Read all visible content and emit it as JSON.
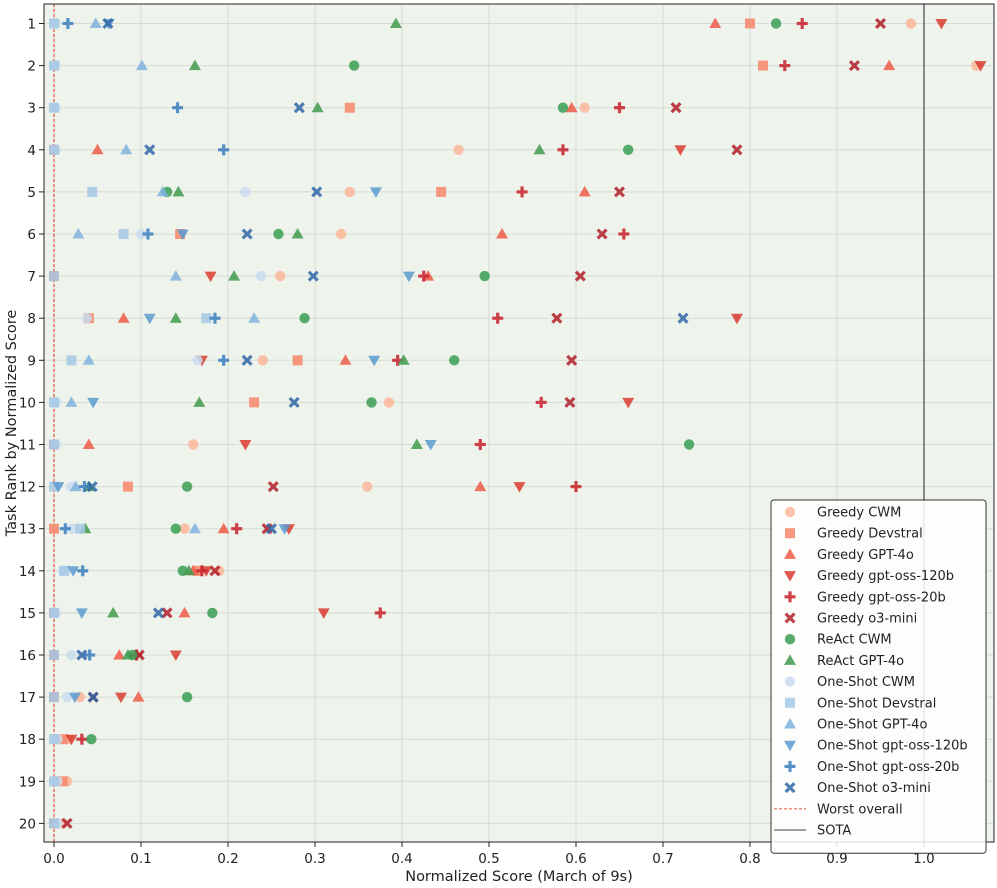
{
  "chart_data": {
    "type": "scatter",
    "xlabel": "Normalized Score (March of 9s)",
    "ylabel": "Task Rank by Normalized Score",
    "xlim": [
      -0.01,
      1.08
    ],
    "x_ticks": [
      0.0,
      0.1,
      0.2,
      0.3,
      0.4,
      0.5,
      0.6,
      0.7,
      0.8,
      0.9,
      1.0
    ],
    "x_tick_labels": [
      "0.0",
      "0.1",
      "0.2",
      "0.3",
      "0.4",
      "0.5",
      "0.6",
      "0.7",
      "0.8",
      "0.9",
      "1.0"
    ],
    "categories": [
      "1",
      "2",
      "3",
      "4",
      "5",
      "6",
      "7",
      "8",
      "9",
      "10",
      "11",
      "12",
      "13",
      "14",
      "15",
      "16",
      "17",
      "18",
      "19",
      "20"
    ],
    "grid": true,
    "legend_position": "lower-right",
    "reference_lines": [
      {
        "name": "Worst overall",
        "x": 0.0,
        "color": "#e8503a",
        "style": "dashed"
      },
      {
        "name": "SOTA",
        "x": 1.0,
        "color": "#222222",
        "style": "solid"
      }
    ],
    "series": [
      {
        "name": "Greedy CWM",
        "marker": "circle",
        "color": "#fcb69a",
        "values": [
          0.985,
          1.06,
          0.61,
          0.465,
          0.34,
          0.33,
          0.26,
          0.04,
          0.24,
          0.385,
          0.16,
          0.36,
          0.15,
          0.19,
          null,
          null,
          0.03,
          0.015,
          0.015,
          0.01
        ]
      },
      {
        "name": "Greedy Devstral",
        "marker": "square",
        "color": "#f7866a",
        "values": [
          0.8,
          0.815,
          0.34,
          0.0,
          0.445,
          0.145,
          0.0,
          0.04,
          0.28,
          0.23,
          0.0,
          0.085,
          0.0,
          0.165,
          0.0,
          0.0,
          0.0,
          0.01,
          0.01,
          0.0
        ]
      },
      {
        "name": "Greedy GPT-4o",
        "marker": "triangle-up",
        "color": "#ef5a48",
        "values": [
          0.76,
          0.96,
          0.595,
          0.05,
          0.61,
          0.515,
          0.43,
          0.08,
          0.335,
          null,
          0.04,
          0.49,
          0.195,
          0.16,
          0.15,
          0.075,
          0.097,
          null,
          null,
          null
        ]
      },
      {
        "name": "Greedy gpt-oss-120b",
        "marker": "triangle-down",
        "color": "#d93b2f",
        "values": [
          1.02,
          1.065,
          null,
          0.72,
          null,
          null,
          0.18,
          0.785,
          0.17,
          0.66,
          0.22,
          0.535,
          0.27,
          0.175,
          0.31,
          0.14,
          0.077,
          0.02,
          null,
          null
        ]
      },
      {
        "name": "Greedy gpt-oss-20b",
        "marker": "plus",
        "color": "#c9212c",
        "values": [
          0.86,
          0.84,
          0.65,
          0.585,
          0.538,
          0.655,
          0.425,
          0.51,
          0.395,
          0.56,
          0.49,
          0.6,
          0.21,
          0.17,
          0.375,
          0.095,
          null,
          0.032,
          null,
          null
        ]
      },
      {
        "name": "Greedy o3-mini",
        "marker": "x",
        "color": "#b21f2a",
        "values": [
          0.95,
          0.92,
          0.715,
          0.785,
          0.65,
          0.63,
          0.605,
          0.578,
          0.595,
          0.593,
          null,
          0.252,
          0.245,
          0.185,
          0.13,
          0.098,
          0.045,
          null,
          null,
          0.015
        ]
      },
      {
        "name": "ReAct CWM",
        "marker": "circle",
        "color": "#3a9e52",
        "values": [
          0.83,
          0.345,
          0.585,
          0.66,
          0.13,
          0.258,
          0.495,
          0.288,
          0.46,
          0.365,
          0.73,
          0.153,
          0.14,
          0.148,
          0.182,
          0.09,
          0.153,
          0.043,
          null,
          null
        ]
      },
      {
        "name": "ReAct GPT-4o",
        "marker": "triangle-up",
        "color": "#3f9a4c",
        "values": [
          0.393,
          0.162,
          0.303,
          0.558,
          0.143,
          0.28,
          0.207,
          0.14,
          0.402,
          0.167,
          0.417,
          0.04,
          0.036,
          0.155,
          0.068,
          0.085,
          null,
          null,
          null,
          null
        ]
      },
      {
        "name": "One-Shot CWM",
        "marker": "circle",
        "color": "#c9dcee",
        "values": [
          0.002,
          0.002,
          0.002,
          0.002,
          0.22,
          0.1,
          0.238,
          0.038,
          0.165,
          0.002,
          0.002,
          0.02,
          0.02,
          0.01,
          0.002,
          0.02,
          0.015,
          0.004,
          0.004,
          0.004
        ]
      },
      {
        "name": "One-Shot Devstral",
        "marker": "square",
        "color": "#a5c8e4",
        "values": [
          0.0,
          0.0,
          0.0,
          0.0,
          0.044,
          0.08,
          0.0,
          0.175,
          0.02,
          0.0,
          0.0,
          0.0,
          0.03,
          0.012,
          0.0,
          0.0,
          0.0,
          0.0,
          0.0,
          0.0
        ]
      },
      {
        "name": "One-Shot GPT-4o",
        "marker": "triangle-up",
        "color": "#7eb2dd",
        "values": [
          0.048,
          0.101,
          null,
          0.083,
          0.125,
          0.028,
          0.14,
          0.23,
          0.04,
          0.02,
          null,
          0.025,
          0.162,
          null,
          null,
          null,
          null,
          null,
          null,
          null
        ]
      },
      {
        "name": "One-Shot gpt-oss-120b",
        "marker": "triangle-down",
        "color": "#5b9bd0",
        "values": [
          0.063,
          null,
          null,
          null,
          0.37,
          0.148,
          0.408,
          0.11,
          0.368,
          0.045,
          0.433,
          0.005,
          0.265,
          0.022,
          0.032,
          null,
          0.024,
          null,
          null,
          null
        ]
      },
      {
        "name": "One-Shot gpt-oss-20b",
        "marker": "plus",
        "color": "#3a7fc0",
        "values": [
          0.016,
          null,
          0.142,
          0.195,
          null,
          0.108,
          null,
          0.185,
          0.195,
          null,
          null,
          0.035,
          0.013,
          0.033,
          null,
          0.041,
          null,
          null,
          null,
          null
        ]
      },
      {
        "name": "One-Shot o3-mini",
        "marker": "x",
        "color": "#2f67a7",
        "values": [
          0.062,
          null,
          0.282,
          0.11,
          0.302,
          0.222,
          0.298,
          0.723,
          0.222,
          0.276,
          null,
          0.044,
          0.25,
          null,
          0.12,
          0.032,
          0.045,
          null,
          null,
          null
        ]
      }
    ]
  },
  "legend": {
    "items": [
      {
        "label": "Greedy CWM",
        "marker": "circle",
        "color": "#fcb69a"
      },
      {
        "label": "Greedy Devstral",
        "marker": "square",
        "color": "#f7866a"
      },
      {
        "label": "Greedy GPT-4o",
        "marker": "triangle-up",
        "color": "#ef5a48"
      },
      {
        "label": "Greedy gpt-oss-120b",
        "marker": "triangle-down",
        "color": "#d93b2f"
      },
      {
        "label": "Greedy gpt-oss-20b",
        "marker": "plus",
        "color": "#c9212c"
      },
      {
        "label": "Greedy o3-mini",
        "marker": "x",
        "color": "#b21f2a"
      },
      {
        "label": "ReAct CWM",
        "marker": "circle",
        "color": "#3a9e52"
      },
      {
        "label": "ReAct GPT-4o",
        "marker": "triangle-up",
        "color": "#3f9a4c"
      },
      {
        "label": "One-Shot CWM",
        "marker": "circle",
        "color": "#c9dcee"
      },
      {
        "label": "One-Shot Devstral",
        "marker": "square",
        "color": "#a5c8e4"
      },
      {
        "label": "One-Shot GPT-4o",
        "marker": "triangle-up",
        "color": "#7eb2dd"
      },
      {
        "label": "One-Shot gpt-oss-120b",
        "marker": "triangle-down",
        "color": "#5b9bd0"
      },
      {
        "label": "One-Shot gpt-oss-20b",
        "marker": "plus",
        "color": "#3a7fc0"
      },
      {
        "label": "One-Shot o3-mini",
        "marker": "x",
        "color": "#2f67a7"
      },
      {
        "label": "Worst overall",
        "marker": "dashed-line",
        "color": "#e8503a"
      },
      {
        "label": "SOTA",
        "marker": "solid-line",
        "color": "#222222"
      }
    ]
  }
}
